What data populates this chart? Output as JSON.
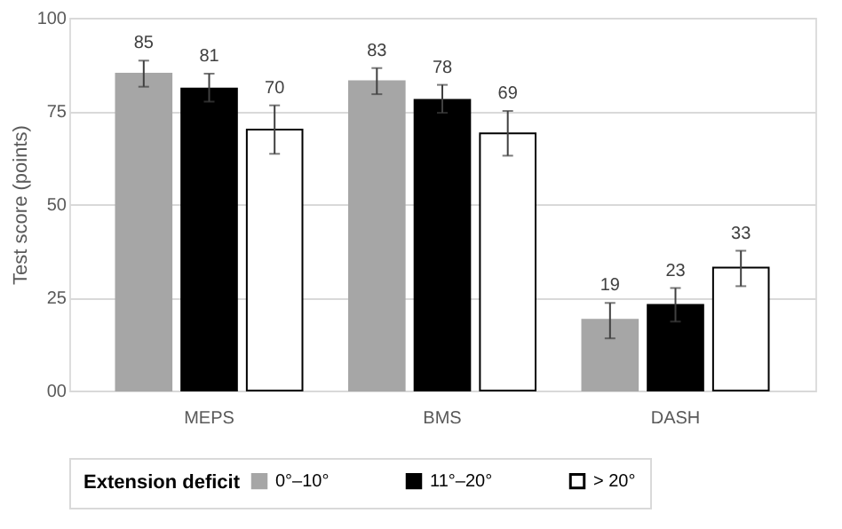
{
  "chart_data": {
    "type": "bar",
    "ylabel": "Test score (points)",
    "legend_title": "Extension deficit",
    "categories": [
      "MEPS",
      "BMS",
      "DASH"
    ],
    "series": [
      {
        "name": "0°–10°",
        "color": "#a6a6a6",
        "values": [
          85,
          83,
          19
        ],
        "errors": [
          [
            81.5,
            88.5
          ],
          [
            79.5,
            86.5
          ],
          [
            14,
            23.5
          ]
        ]
      },
      {
        "name": "11°–20°",
        "color": "#000000",
        "values": [
          81,
          78,
          23
        ],
        "errors": [
          [
            77.5,
            85
          ],
          [
            74.5,
            82
          ],
          [
            18.5,
            27.5
          ]
        ]
      },
      {
        "name": "> 20°",
        "color": "#ffffff",
        "values": [
          70,
          69,
          33
        ],
        "errors": [
          [
            63.5,
            76.5
          ],
          [
            63,
            75
          ],
          [
            28,
            37.5
          ]
        ]
      }
    ],
    "ylim": [
      0,
      100
    ],
    "yticks": [
      {
        "value": 0,
        "label": "00"
      },
      25,
      50,
      75,
      100
    ],
    "grid": "y",
    "data_labels": true,
    "legend": "bottom"
  }
}
